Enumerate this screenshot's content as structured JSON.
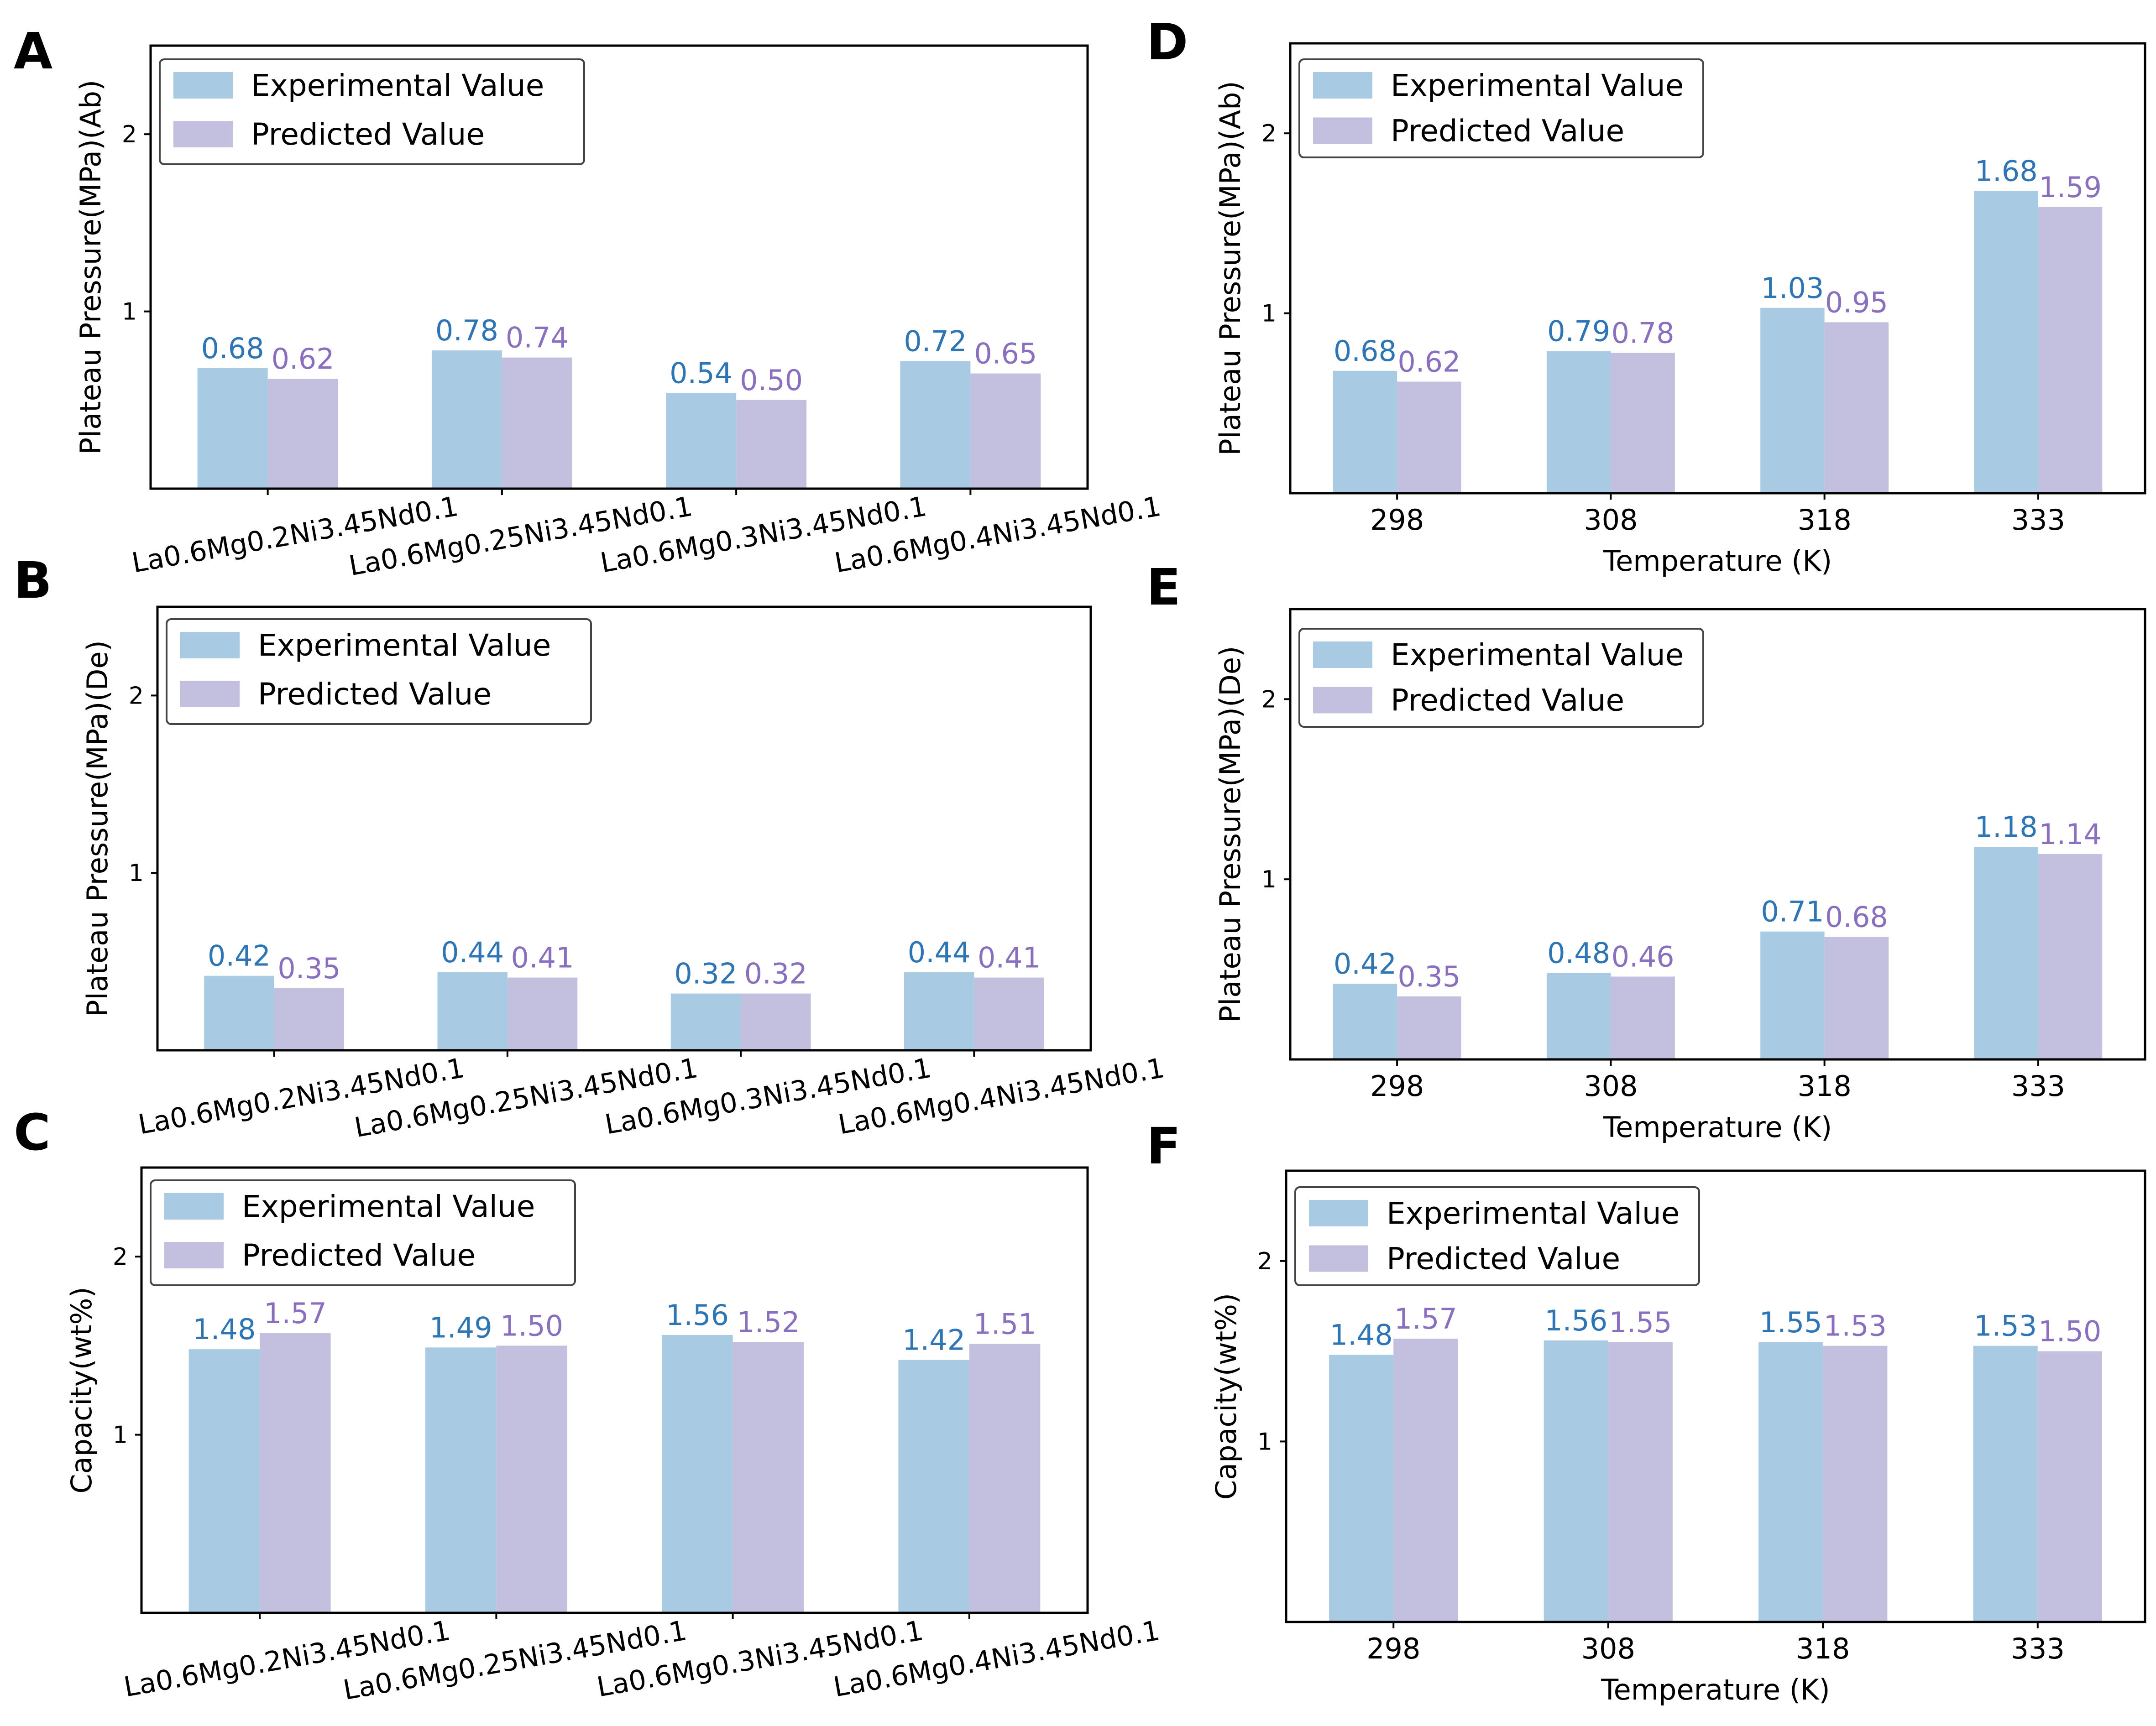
{
  "colors": {
    "experimental_bar": "#A9CAE3",
    "predicted_bar": "#C2C0DE",
    "experimental_label": "#2E75B6",
    "predicted_label": "#8A6FC0"
  },
  "chart_data": [
    {
      "panel": "A",
      "type": "bar",
      "ylabel": "Plateau  Pressure(MPa)(Ab)",
      "xlabel": "",
      "ylim": [
        0,
        2.5
      ],
      "yticks": [
        1,
        2
      ],
      "categories": [
        "La0.6Mg0.2Ni3.45Nd0.1",
        "La0.6Mg0.25Ni3.45Nd0.1",
        "La0.6Mg0.3Ni3.45Nd0.1",
        "La0.6Mg0.4Ni3.45Nd0.1"
      ],
      "series": [
        {
          "name": "Experimental Value",
          "values": [
            0.68,
            0.78,
            0.54,
            0.72
          ],
          "labels": [
            "0.68",
            "0.78",
            "0.54",
            "0.72"
          ]
        },
        {
          "name": "Predicted Value",
          "values": [
            0.62,
            0.74,
            0.5,
            0.65
          ],
          "labels": [
            "0.62",
            "0.74",
            "0.50",
            "0.65"
          ]
        }
      ],
      "legend": "top-left"
    },
    {
      "panel": "B",
      "type": "bar",
      "ylabel": "Plateau  Pressure(MPa)(De)",
      "xlabel": "",
      "ylim": [
        0,
        2.5
      ],
      "yticks": [
        1,
        2
      ],
      "categories": [
        "La0.6Mg0.2Ni3.45Nd0.1",
        "La0.6Mg0.25Ni3.45Nd0.1",
        "La0.6Mg0.3Ni3.45Nd0.1",
        "La0.6Mg0.4Ni3.45Nd0.1"
      ],
      "series": [
        {
          "name": "Experimental Value",
          "values": [
            0.42,
            0.44,
            0.32,
            0.44
          ],
          "labels": [
            "0.42",
            "0.44",
            "0.32",
            "0.44"
          ]
        },
        {
          "name": "Predicted Value",
          "values": [
            0.35,
            0.41,
            0.32,
            0.41
          ],
          "labels": [
            "0.35",
            "0.41",
            "0.32",
            "0.41"
          ]
        }
      ],
      "legend": "top-left"
    },
    {
      "panel": "C",
      "type": "bar",
      "ylabel": "Capacity(wt%)",
      "xlabel": "",
      "ylim": [
        0,
        2.5
      ],
      "yticks": [
        1,
        2
      ],
      "categories": [
        "La0.6Mg0.2Ni3.45Nd0.1",
        "La0.6Mg0.25Ni3.45Nd0.1",
        "La0.6Mg0.3Ni3.45Nd0.1",
        "La0.6Mg0.4Ni3.45Nd0.1"
      ],
      "series": [
        {
          "name": "Experimental Value",
          "values": [
            1.48,
            1.49,
            1.56,
            1.42
          ],
          "labels": [
            "1.48",
            "1.49",
            "1.56",
            "1.42"
          ]
        },
        {
          "name": "Predicted Value",
          "values": [
            1.57,
            1.5,
            1.52,
            1.51
          ],
          "labels": [
            "1.57",
            "1.50",
            "1.52",
            "1.51"
          ]
        }
      ],
      "legend": "top-left"
    },
    {
      "panel": "D",
      "type": "bar",
      "ylabel": "Plateau  Pressure(MPa)(Ab)",
      "xlabel": "Temperature (K)",
      "ylim": [
        0,
        2.5
      ],
      "yticks": [
        1,
        2
      ],
      "categories": [
        "298",
        "308",
        "318",
        "333"
      ],
      "series": [
        {
          "name": "Experimental Value",
          "values": [
            0.68,
            0.79,
            1.03,
            1.68
          ],
          "labels": [
            "0.68",
            "0.79",
            "1.03",
            "1.68"
          ]
        },
        {
          "name": "Predicted Value",
          "values": [
            0.62,
            0.78,
            0.95,
            1.59
          ],
          "labels": [
            "0.62",
            "0.78",
            "0.95",
            "1.59"
          ]
        }
      ],
      "legend": "top-left"
    },
    {
      "panel": "E",
      "type": "bar",
      "ylabel": "Plateau  Pressure(MPa)(De)",
      "xlabel": "Temperature (K)",
      "ylim": [
        0,
        2.5
      ],
      "yticks": [
        1,
        2
      ],
      "categories": [
        "298",
        "308",
        "318",
        "333"
      ],
      "series": [
        {
          "name": "Experimental Value",
          "values": [
            0.42,
            0.48,
            0.71,
            1.18
          ],
          "labels": [
            "0.42",
            "0.48",
            "0.71",
            "1.18"
          ]
        },
        {
          "name": "Predicted Value",
          "values": [
            0.35,
            0.46,
            0.68,
            1.14
          ],
          "labels": [
            "0.35",
            "0.46",
            "0.68",
            "1.14"
          ]
        }
      ],
      "legend": "top-left"
    },
    {
      "panel": "F",
      "type": "bar",
      "ylabel": "Capacity(wt%)",
      "xlabel": "Temperature (K)",
      "ylim": [
        0,
        2.5
      ],
      "yticks": [
        1,
        2
      ],
      "categories": [
        "298",
        "308",
        "318",
        "333"
      ],
      "series": [
        {
          "name": "Experimental Value",
          "values": [
            1.48,
            1.56,
            1.55,
            1.53
          ],
          "labels": [
            "1.48",
            "1.56",
            "1.55",
            "1.53"
          ]
        },
        {
          "name": "Predicted Value",
          "values": [
            1.57,
            1.55,
            1.53,
            1.5
          ],
          "labels": [
            "1.57",
            "1.55",
            "1.53",
            "1.50"
          ]
        }
      ],
      "legend": "top-left"
    }
  ]
}
